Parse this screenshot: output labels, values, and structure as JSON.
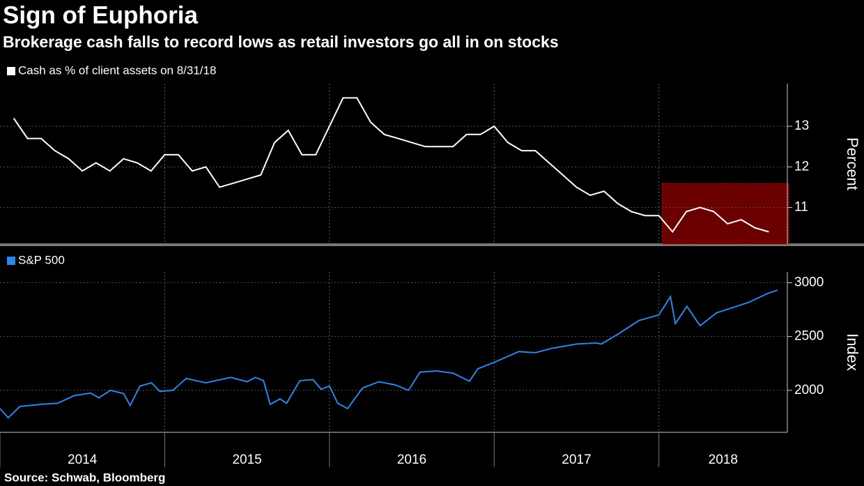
{
  "title": "Sign of Euphoria",
  "subtitle": "Brokerage cash falls to record lows as retail investors go all in on stocks",
  "source": "Source: Schwab, Bloomberg",
  "chart_data": [
    {
      "type": "line",
      "ylabel": "Percent",
      "xlim": [
        2014,
        2018.78
      ],
      "ylim": [
        10.1,
        14.05
      ],
      "yticks": [
        11,
        12,
        13
      ],
      "grid": true,
      "series": [
        {
          "name": "Cash as % of client assets on 8/31/18",
          "color": "#ffffff",
          "x": [
            2014.083,
            2014.167,
            2014.25,
            2014.333,
            2014.417,
            2014.5,
            2014.583,
            2014.667,
            2014.75,
            2014.833,
            2014.917,
            2015,
            2015.083,
            2015.167,
            2015.25,
            2015.333,
            2015.417,
            2015.5,
            2015.583,
            2015.667,
            2015.75,
            2015.833,
            2015.917,
            2016,
            2016.083,
            2016.167,
            2016.25,
            2016.333,
            2016.417,
            2016.5,
            2016.583,
            2016.667,
            2016.75,
            2016.833,
            2016.917,
            2017,
            2017.083,
            2017.167,
            2017.25,
            2017.333,
            2017.417,
            2017.5,
            2017.583,
            2017.667,
            2017.75,
            2017.833,
            2017.917,
            2018,
            2018.083,
            2018.167,
            2018.25,
            2018.333,
            2018.417,
            2018.5,
            2018.583,
            2018.667
          ],
          "values": [
            13.2,
            12.7,
            12.7,
            12.4,
            12.2,
            11.9,
            12.1,
            11.9,
            12.2,
            12.1,
            11.9,
            12.3,
            12.3,
            11.9,
            12.0,
            11.5,
            11.6,
            11.7,
            11.8,
            12.6,
            12.9,
            12.3,
            12.3,
            13.0,
            13.7,
            13.7,
            13.1,
            12.8,
            12.7,
            12.6,
            12.5,
            12.5,
            12.5,
            12.8,
            12.8,
            13.0,
            12.6,
            12.4,
            12.4,
            12.1,
            11.8,
            11.5,
            11.3,
            11.4,
            11.1,
            10.9,
            10.8,
            10.8,
            10.4,
            10.9,
            11.0,
            10.9,
            10.6,
            10.7,
            10.5,
            10.4
          ]
        }
      ]
    },
    {
      "type": "line",
      "ylabel": "Index",
      "xlim": [
        2014,
        2018.78
      ],
      "ylim": [
        1610,
        3100
      ],
      "yticks": [
        2000,
        2500,
        3000
      ],
      "grid": true,
      "xticks": [
        2014,
        2015,
        2016,
        2017,
        2018
      ],
      "series": [
        {
          "name": "S&P 500",
          "color": "#2a86e8",
          "x": [
            2014.0,
            2014.05,
            2014.12,
            2014.25,
            2014.35,
            2014.45,
            2014.55,
            2014.6,
            2014.67,
            2014.75,
            2014.79,
            2014.85,
            2014.92,
            2014.97,
            2015.05,
            2015.13,
            2015.25,
            2015.4,
            2015.5,
            2015.55,
            2015.6,
            2015.64,
            2015.7,
            2015.74,
            2015.82,
            2015.9,
            2015.95,
            2016.0,
            2016.05,
            2016.11,
            2016.2,
            2016.3,
            2016.4,
            2016.48,
            2016.55,
            2016.65,
            2016.75,
            2016.85,
            2016.9,
            2017.0,
            2017.15,
            2017.25,
            2017.35,
            2017.5,
            2017.62,
            2017.65,
            2017.75,
            2017.88,
            2018.0,
            2018.07,
            2018.1,
            2018.17,
            2018.25,
            2018.35,
            2018.45,
            2018.55,
            2018.66,
            2018.72
          ],
          "values": [
            1830,
            1745,
            1850,
            1870,
            1880,
            1950,
            1975,
            1930,
            2000,
            1970,
            1860,
            2040,
            2070,
            1990,
            2000,
            2110,
            2070,
            2120,
            2080,
            2120,
            2090,
            1870,
            1920,
            1880,
            2090,
            2100,
            2010,
            2040,
            1880,
            1830,
            2020,
            2080,
            2050,
            2000,
            2170,
            2180,
            2160,
            2085,
            2200,
            2260,
            2360,
            2350,
            2390,
            2430,
            2440,
            2430,
            2520,
            2650,
            2700,
            2870,
            2620,
            2780,
            2600,
            2720,
            2770,
            2820,
            2900,
            2930
          ]
        }
      ]
    }
  ]
}
